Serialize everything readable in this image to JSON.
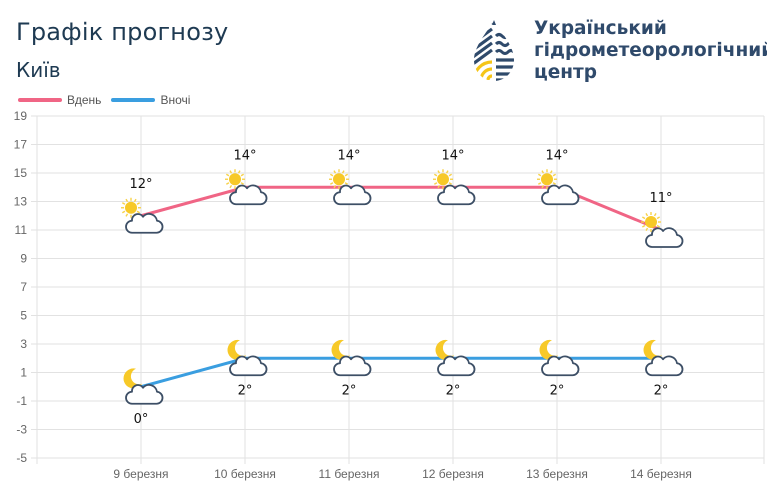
{
  "header": {
    "title": "Графік прогнозу",
    "city": "Київ"
  },
  "logo": {
    "line1": "Український",
    "line2": "гідрометеорологічний",
    "line3": "центр",
    "colors": {
      "navy": "#2f4a6b",
      "yellow": "#f5c518"
    }
  },
  "legend": [
    {
      "label": "Вдень",
      "color": "#f06585"
    },
    {
      "label": "Вночі",
      "color": "#3a9ee0"
    }
  ],
  "chart_data": {
    "type": "line",
    "title": "Графік прогнозу — Київ",
    "categories": [
      "9 березня",
      "10 березня",
      "11 березня",
      "12 березня",
      "13 березня",
      "14 березня"
    ],
    "series": [
      {
        "name": "Вдень",
        "color": "#f06585",
        "values": [
          12,
          14,
          14,
          14,
          14,
          11
        ],
        "labels": [
          "12°",
          "14°",
          "14°",
          "14°",
          "14°",
          "11°"
        ],
        "icon": "sun-cloud-icon"
      },
      {
        "name": "Вночі",
        "color": "#3a9ee0",
        "values": [
          0,
          2,
          2,
          2,
          2,
          2
        ],
        "labels": [
          "0°",
          "2°",
          "2°",
          "2°",
          "2°",
          "2°"
        ],
        "icon": "moon-cloud-icon"
      }
    ],
    "yticks": [
      19,
      17,
      15,
      13,
      11,
      9,
      7,
      5,
      3,
      1,
      -1,
      -3,
      -5
    ],
    "ylim": [
      -5,
      19
    ],
    "xlabel": "",
    "ylabel": "",
    "grid": true,
    "legend_position": "top-left"
  }
}
